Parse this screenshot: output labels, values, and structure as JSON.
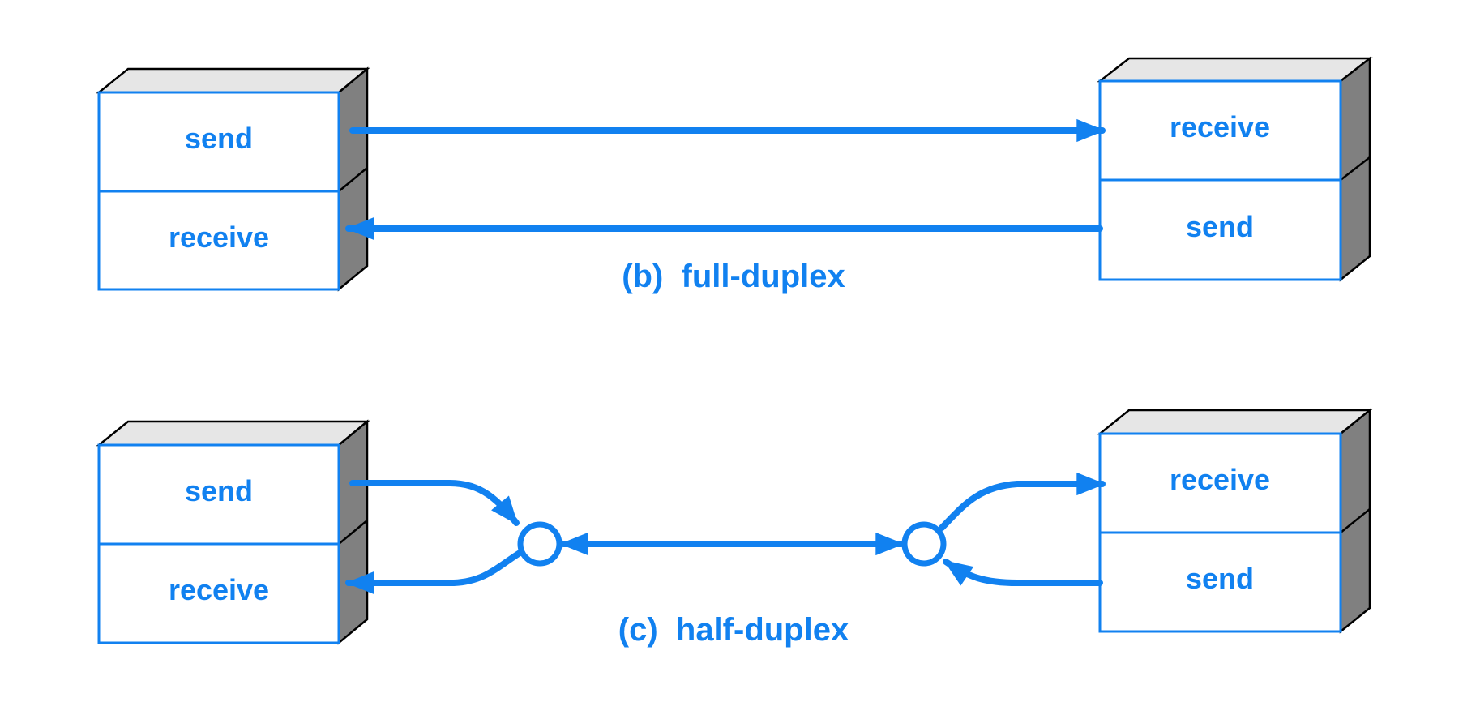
{
  "diagrams": [
    {
      "caption": "(b)  full-duplex",
      "left_station": {
        "top": "send",
        "bottom": "receive"
      },
      "right_station": {
        "top": "receive",
        "bottom": "send"
      }
    },
    {
      "caption": "(c)  half-duplex",
      "left_station": {
        "top": "send",
        "bottom": "receive"
      },
      "right_station": {
        "top": "receive",
        "bottom": "send"
      }
    }
  ],
  "colors": {
    "line": "#1181f0",
    "box_top": "#e6e6e6",
    "box_side": "#808080",
    "background": "#ffffff"
  }
}
